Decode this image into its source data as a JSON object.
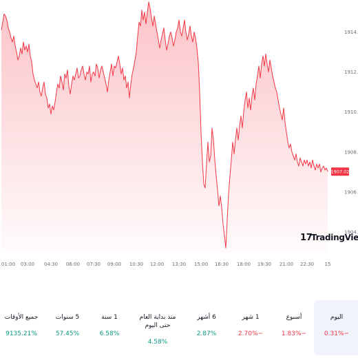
{
  "chart_data": {
    "type": "area",
    "y_ticks": [
      "1914.00",
      "1912.00",
      "1910.00",
      "1908.00",
      "1906.00",
      "1904.00"
    ],
    "y_tick_values": [
      1914,
      1912,
      1910,
      1908,
      1906,
      1904
    ],
    "ylim": [
      1903,
      1915.6
    ],
    "x_ticks": [
      "01:00",
      "03:00",
      "04:30",
      "06:00",
      "07:30",
      "09:00",
      "10:30",
      "12:00",
      "13:30",
      "15:00",
      "16:30",
      "18:00",
      "19:30",
      "21:00",
      "22:30",
      "15"
    ],
    "x_tick_index": [
      0,
      19,
      36,
      52,
      67,
      82,
      98,
      113,
      129,
      145,
      160,
      176,
      191,
      207,
      222,
      237
    ],
    "last_price": "1907.02",
    "line_color": "#f23645",
    "series_values": [
      1914.1,
      1914.5,
      1914.9,
      1914.8,
      1914.6,
      1914.2,
      1914.0,
      1913.7,
      1913.5,
      1913.8,
      1913.3,
      1913.0,
      1912.6,
      1912.8,
      1913.2,
      1912.9,
      1913.5,
      1913.1,
      1913.3,
      1913.0,
      1913.4,
      1912.8,
      1912.5,
      1911.9,
      1911.6,
      1911.4,
      1911.2,
      1911.5,
      1911.0,
      1910.8,
      1911.2,
      1911.5,
      1910.9,
      1910.7,
      1910.2,
      1910.4,
      1909.9,
      1910.3,
      1910.1,
      1910.5,
      1911.0,
      1911.4,
      1911.2,
      1911.8,
      1911.5,
      1911.1,
      1911.9,
      1911.7,
      1912.1,
      1911.3,
      1910.9,
      1911.4,
      1911.8,
      1911.6,
      1911.9,
      1912.2,
      1911.7,
      1911.8,
      1912.1,
      1912.3,
      1911.9,
      1911.6,
      1912.0,
      1911.9,
      1912.3,
      1911.5,
      1911.9,
      1912.0,
      1911.8,
      1912.4,
      1912.2,
      1911.7,
      1912.1,
      1912.3,
      1912.0,
      1911.7,
      1911.4,
      1911.0,
      1911.6,
      1912.0,
      1912.4,
      1911.8,
      1912.3,
      1912.2,
      1912.5,
      1912.8,
      1912.4,
      1911.9,
      1912.2,
      1911.6,
      1911.8,
      1911.2,
      1911.5,
      1910.7,
      1911.4,
      1911.9,
      1912.2,
      1912.6,
      1913.0,
      1913.8,
      1914.5,
      1914.3,
      1915.1,
      1914.6,
      1915.0,
      1914.4,
      1915.0,
      1915.5,
      1915.2,
      1914.7,
      1914.3,
      1914.8,
      1914.4,
      1914.0,
      1913.6,
      1913.2,
      1913.6,
      1913.9,
      1914.2,
      1913.6,
      1913.1,
      1913.4,
      1913.8,
      1914.0,
      1913.7,
      1913.3,
      1913.6,
      1914.0,
      1914.2,
      1914.6,
      1914.0,
      1913.8,
      1914.2,
      1914.6,
      1914.0,
      1913.6,
      1913.9,
      1914.3,
      1913.8,
      1913.5,
      1914.0,
      1913.7,
      1913.2,
      1912.5,
      1911.0,
      1909.0,
      1907.5,
      1906.4,
      1906.2,
      1907.4,
      1908.5,
      1907.5,
      1907.8,
      1909.2,
      1908.6,
      1907.6,
      1906.8,
      1906.1,
      1905.3,
      1905.8,
      1905.2,
      1904.4,
      1903.8,
      1903.2,
      1904.6,
      1905.9,
      1906.8,
      1907.6,
      1908.5,
      1907.9,
      1908.6,
      1909.2,
      1908.6,
      1909.3,
      1909.8,
      1909.2,
      1910.0,
      1910.6,
      1911.0,
      1910.2,
      1910.7,
      1910.1,
      1910.8,
      1911.2,
      1910.6,
      1911.4,
      1911.8,
      1912.3,
      1911.7,
      1912.4,
      1912.8,
      1912.3,
      1912.9,
      1912.4,
      1912.0,
      1912.6,
      1912.2,
      1911.8,
      1911.5,
      1911.2,
      1911.0,
      1910.6,
      1910.2,
      1909.9,
      1909.6,
      1910.2,
      1909.5,
      1909.0,
      1908.5,
      1908.2,
      1908.4,
      1908.0,
      1907.8,
      1907.6,
      1907.9,
      1907.5,
      1907.3,
      1907.7,
      1907.5,
      1907.3,
      1907.6,
      1907.4,
      1907.6,
      1907.3,
      1907.5,
      1907.2,
      1907.6,
      1907.3,
      1907.1,
      1907.4,
      1907.2,
      1907.4,
      1907.0,
      1907.2,
      1907.3,
      1907.1,
      1907.2,
      1907.02
    ]
  },
  "branding": {
    "name": "TradingView",
    "logo_glyph": "17"
  },
  "performance": [
    {
      "label": "جميع الأوقات",
      "value": "9135.21%",
      "trend": "pos"
    },
    {
      "label": "5 سنوات",
      "value": "57.45%",
      "trend": "pos"
    },
    {
      "label": "1 سنة",
      "value": "6.58%",
      "trend": "pos"
    },
    {
      "label": "منذ بداية العام حتى اليوم",
      "value": "4.58%",
      "trend": "pos"
    },
    {
      "label": "6 أشهر",
      "value": "2.87%",
      "trend": "pos"
    },
    {
      "label": "1 شهر",
      "value": "2.70%−",
      "trend": "neg"
    },
    {
      "label": "أسبوع",
      "value": "1.83%−",
      "trend": "neg"
    },
    {
      "label": "اليوم",
      "value": "0.31%−",
      "trend": "neg",
      "active": true
    }
  ]
}
